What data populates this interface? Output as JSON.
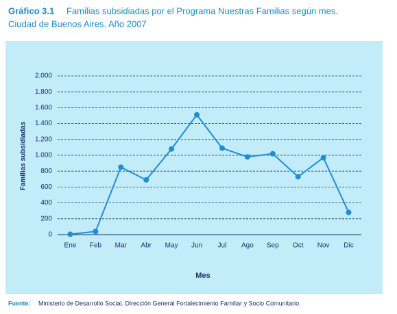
{
  "chart_data": {
    "type": "line",
    "figure_label": "Gráfico 3.1",
    "title": "Familias subsidiadas por el Programa Nuestras Familias según mes.",
    "subtitle": "Ciudad de Buenos Aires. Año 2007",
    "x_label": "Mes",
    "y_label": "Familias subsidiadas",
    "categories": [
      "Ene",
      "Feb",
      "Mar",
      "Abr",
      "May",
      "Jun",
      "Jul",
      "Ago",
      "Sep",
      "Oct",
      "Nov",
      "Dic"
    ],
    "values": [
      5,
      40,
      850,
      690,
      1080,
      1510,
      1090,
      980,
      1020,
      730,
      970,
      280
    ],
    "color": "#1f8dd6",
    "ylim": [
      0,
      2000
    ],
    "yticks": [
      0,
      200,
      400,
      600,
      800,
      {
        "value": 1000,
        "label": "1.000"
      },
      {
        "value": 1200,
        "label": "1.200"
      },
      {
        "value": 1400,
        "label": "1.400"
      },
      {
        "value": 1600,
        "label": "1.600"
      },
      {
        "value": 1800,
        "label": "1.800"
      },
      {
        "value": 2000,
        "label": "2.000"
      }
    ],
    "grid": true,
    "source_label": "Fuente:",
    "source": "Ministerio de Desarrollo Social. Dirección General Fortalecimiento Familiar y Socio Comunitario."
  }
}
